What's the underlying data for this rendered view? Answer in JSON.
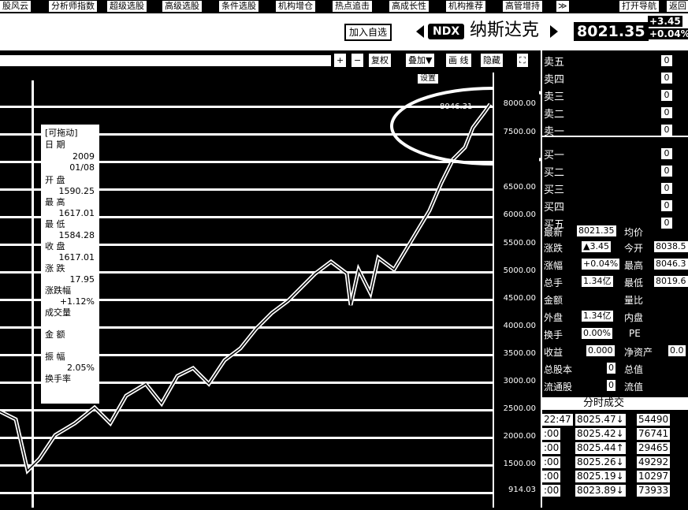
{
  "nav": {
    "items": [
      "股风云",
      "分析师指数",
      "超级选股",
      "高级选股",
      "条件选股",
      "机构增仓",
      "热点追击",
      "高成长性",
      "机构推荐",
      "高管增持",
      "打开导航",
      "返回"
    ]
  },
  "title": {
    "add_watch": "加入自选",
    "code": "NDX",
    "name": "纳斯达克",
    "price": "8021.35",
    "change": "+3.45",
    "change_pct": "+0.04%"
  },
  "toolbar": {
    "plus": "+",
    "minus": "−",
    "adjust": "复权",
    "overlay": "叠加▼",
    "draw": "画 线",
    "hide": "隐藏",
    "expand": "⛶"
  },
  "chart": {
    "peak_label": "8046.31",
    "y_ticks": [
      "8000.00",
      "7500.00",
      "6500.00",
      "6000.00",
      "5500.00",
      "5000.00",
      "4500.00",
      "4000.00",
      "3500.00",
      "3000.00",
      "2500.00",
      "2000.00",
      "1500.00",
      "914.03"
    ],
    "settings_label": "设置"
  },
  "infobox": {
    "title": "[可拖动]",
    "date_label": "日 期",
    "date_year": "2009",
    "date_md": "01/08",
    "open_label": "开 盘",
    "open": "1590.25",
    "high_label": "最 高",
    "high": "1617.01",
    "low_label": "最 低",
    "low": "1584.28",
    "close_label": "收 盘",
    "close": "1617.01",
    "chg_label": "涨 跌",
    "chg": "17.95",
    "chgpct_label": "涨跌幅",
    "chgpct": "+1.12%",
    "volume_label": "成交量",
    "amount_label": "金 额",
    "amp_label": "振 幅",
    "amp": "2.05%",
    "turnover_label": "换手率"
  },
  "orderbook": {
    "sell": [
      {
        "label": "卖五",
        "vol": "0"
      },
      {
        "label": "卖四",
        "vol": "0"
      },
      {
        "label": "卖三",
        "vol": "0"
      },
      {
        "label": "卖二",
        "vol": "0"
      },
      {
        "label": "卖一",
        "vol": "0"
      }
    ],
    "buy": [
      {
        "label": "买一",
        "vol": "0"
      },
      {
        "label": "买二",
        "vol": "0"
      },
      {
        "label": "买三",
        "vol": "0"
      },
      {
        "label": "买四",
        "vol": "0"
      },
      {
        "label": "买五",
        "vol": "0"
      }
    ]
  },
  "quote": {
    "latest_label": "最新",
    "latest": "8021.35",
    "avg_label": "均价",
    "change_label": "涨跌",
    "change": "▲3.45",
    "open_label": "今开",
    "open": "8038.5",
    "pct_label": "涨幅",
    "pct": "+0.04%",
    "high_label": "最高",
    "high": "8046.3",
    "vol_label": "总手",
    "vol": "1.34亿",
    "low_label": "最低",
    "low": "8019.6",
    "amount_label": "金额",
    "ratio_label": "量比",
    "outer_label": "外盘",
    "outer": "1.34亿",
    "inner_label": "内盘",
    "turnover_label": "换手",
    "turnover": "0.00%",
    "pe_label": "PE",
    "eps_label": "收益",
    "eps": "0.000",
    "nav_label": "净资产",
    "nav": "0.0",
    "total_shares_label": "总股本",
    "total_shares": "0",
    "total_mv_label": "总值",
    "float_label": "流通股",
    "float": "0",
    "float_mv_label": "流值"
  },
  "trades": {
    "title": "分时成交",
    "rows": [
      {
        "time": "22:47",
        "price": "8025.47↓",
        "vol": "54490"
      },
      {
        "time": ":00",
        "price": "8025.42↓",
        "vol": "76741"
      },
      {
        "time": ":00",
        "price": "8025.44↑",
        "vol": "29465"
      },
      {
        "time": ":00",
        "price": "8025.26↓",
        "vol": "49292"
      },
      {
        "time": ":00",
        "price": "8025.19↓",
        "vol": "10297"
      },
      {
        "time": ":00",
        "price": "8023.89↓",
        "vol": "73933"
      }
    ]
  }
}
